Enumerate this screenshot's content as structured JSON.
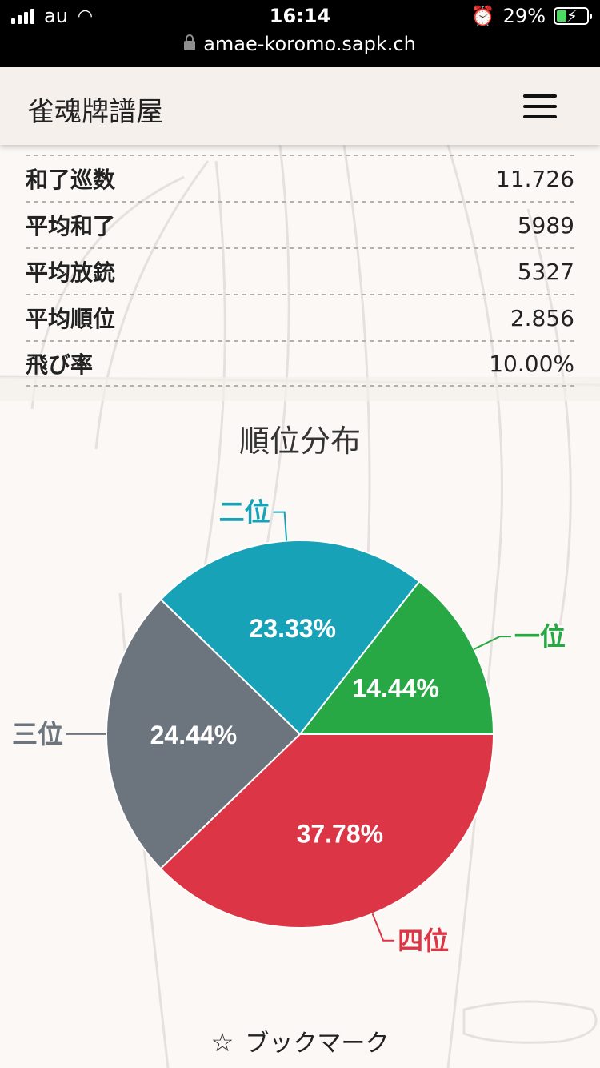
{
  "status_bar": {
    "carrier": "au",
    "time": "16:14",
    "battery": "29%"
  },
  "url_bar": {
    "url": "amae-koromo.sapk.ch"
  },
  "navbar": {
    "brand": "雀魂牌譜屋"
  },
  "stats": [
    {
      "label": "和了巡数",
      "value": "11.726"
    },
    {
      "label": "平均和了",
      "value": "5989"
    },
    {
      "label": "平均放銃",
      "value": "5327"
    },
    {
      "label": "平均順位",
      "value": "2.856"
    },
    {
      "label": "飛び率",
      "value": "10.00%"
    }
  ],
  "chart_data": {
    "type": "pie",
    "title": "順位分布",
    "slices": [
      {
        "name": "一位",
        "value": 14.44,
        "label": "14.44%",
        "color": "#28a745"
      },
      {
        "name": "二位",
        "value": 23.33,
        "label": "23.33%",
        "color": "#17a2b8"
      },
      {
        "name": "三位",
        "value": 24.44,
        "label": "24.44%",
        "color": "#6c757d"
      },
      {
        "name": "四位",
        "value": 37.78,
        "label": "37.78%",
        "color": "#dc3545"
      }
    ]
  },
  "bookmark": {
    "label": "ブックマーク"
  }
}
